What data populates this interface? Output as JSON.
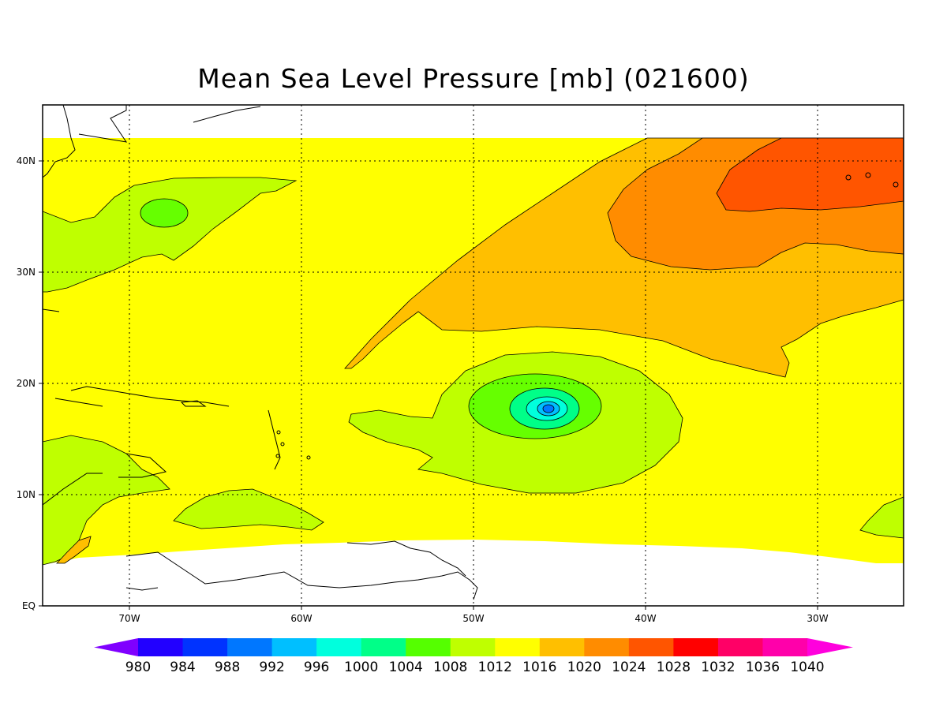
{
  "title": "Mean Sea Level Pressure [mb] (021600)",
  "colors": {
    "c1008": "#bfff00",
    "c1012": "#66ff00",
    "c1016": "#ffff00",
    "c1020": "#ffbf00",
    "c1024": "#ff8c00",
    "c1028": "#ff5500",
    "c1004": "#00ff77",
    "c1000": "#00ffcc",
    "c996": "#00bfff",
    "c992": "#0077ff"
  },
  "axes": {
    "x_ticks": [
      "70W",
      "60W",
      "50W",
      "40W",
      "30W"
    ],
    "y_ticks": [
      "40N",
      "30N",
      "20N",
      "10N",
      "EQ"
    ]
  },
  "colorbar": {
    "labels": [
      "980",
      "984",
      "988",
      "992",
      "996",
      "1000",
      "1004",
      "1008",
      "1012",
      "1016",
      "1020",
      "1024",
      "1028",
      "1032",
      "1036",
      "1040"
    ],
    "colors": [
      "#8000ff",
      "#2200ff",
      "#0033ff",
      "#0077ff",
      "#00bfff",
      "#00ffdd",
      "#00ff88",
      "#55ff00",
      "#bfff00",
      "#ffff00",
      "#ffbf00",
      "#ff8c00",
      "#ff5500",
      "#ff0000",
      "#ff0066",
      "#ff00aa",
      "#ff00dd"
    ]
  }
}
